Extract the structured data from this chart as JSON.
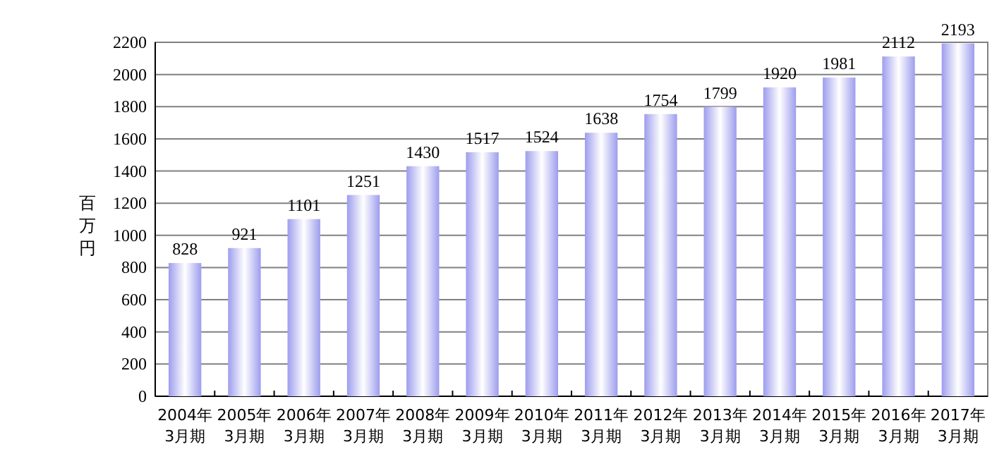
{
  "chart_data": {
    "type": "bar",
    "ylabel": "百万円",
    "categories": [
      "2004年\n3月期",
      "2005年\n3月期",
      "2006年\n3月期",
      "2007年\n3月期",
      "2008年\n3月期",
      "2009年\n3月期",
      "2010年\n3月期",
      "2011年\n3月期",
      "2012年\n3月期",
      "2013年\n3月期",
      "2014年\n3月期",
      "2015年\n3月期",
      "2016年\n3月期",
      "2017年\n3月期"
    ],
    "values": [
      828,
      921,
      1101,
      1251,
      1430,
      1517,
      1524,
      1638,
      1754,
      1799,
      1920,
      1981,
      2112,
      2193
    ],
    "color": "#9d9dee",
    "ylim": [
      0,
      2200
    ],
    "yticks": [
      0,
      200,
      400,
      600,
      800,
      1000,
      1200,
      1400,
      1600,
      1800,
      2000,
      2200
    ],
    "grid": "y",
    "data_labels": true
  }
}
